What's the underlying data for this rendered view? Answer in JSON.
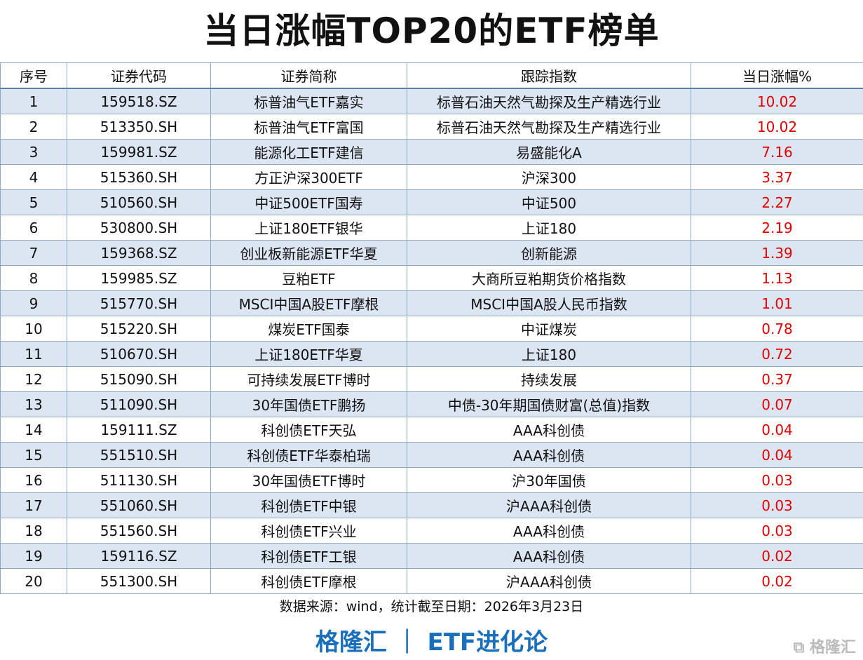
{
  "title": "当日涨幅TOP20的ETF榜单",
  "columns": [
    "序号",
    "证券代码",
    "证券简称",
    "跟踪指数",
    "当日涨幅%"
  ],
  "rows": [
    [
      "1",
      "159518.SZ",
      "标普油气ETF嘉实",
      "标普石油天然气勘探及生产精选行业",
      "10.02"
    ],
    [
      "2",
      "513350.SH",
      "标普油气ETF富国",
      "标普石油天然气勘探及生产精选行业",
      "10.02"
    ],
    [
      "3",
      "159981.SZ",
      "能源化工ETF建信",
      "易盛能化A",
      "7.16"
    ],
    [
      "4",
      "515360.SH",
      "方正沪深300ETF",
      "沪深300",
      "3.37"
    ],
    [
      "5",
      "510560.SH",
      "中证500ETF国寿",
      "中证500",
      "2.27"
    ],
    [
      "6",
      "530800.SH",
      "上证180ETF银华",
      "上证180",
      "2.19"
    ],
    [
      "7",
      "159368.SZ",
      "创业板新能源ETF华夏",
      "创新能源",
      "1.39"
    ],
    [
      "8",
      "159985.SZ",
      "豆粕ETF",
      "大商所豆粕期货价格指数",
      "1.13"
    ],
    [
      "9",
      "515770.SH",
      "MSCI中国A股ETF摩根",
      "MSCI中国A股人民币指数",
      "1.01"
    ],
    [
      "10",
      "515220.SH",
      "煤炭ETF国泰",
      "中证煤炭",
      "0.78"
    ],
    [
      "11",
      "510670.SH",
      "上证180ETF华夏",
      "上证180",
      "0.72"
    ],
    [
      "12",
      "515090.SH",
      "可持续发展ETF博时",
      "持续发展",
      "0.37"
    ],
    [
      "13",
      "511090.SH",
      "30年国债ETF鹏扬",
      "中债-30年期国债财富(总值)指数",
      "0.07"
    ],
    [
      "14",
      "159111.SZ",
      "科创债ETF天弘",
      "AAA科创债",
      "0.04"
    ],
    [
      "15",
      "551510.SH",
      "科创债ETF华泰柏瑞",
      "AAA科创债",
      "0.04"
    ],
    [
      "16",
      "511130.SH",
      "30年国债ETF博时",
      "沪30年国债",
      "0.03"
    ],
    [
      "17",
      "551060.SH",
      "科创债ETF中银",
      "沪AAA科创债",
      "0.03"
    ],
    [
      "18",
      "551560.SH",
      "科创债ETF兴业",
      "AAA科创债",
      "0.03"
    ],
    [
      "19",
      "159116.SZ",
      "科创债ETF工银",
      "AAA科创债",
      "0.02"
    ],
    [
      "20",
      "551300.SH",
      "科创债ETF摩根",
      "沪AAA科创债",
      "0.02"
    ]
  ],
  "source": "数据来源：wind，统计截至日期：2026年3月23日",
  "brand": "格隆汇 ｜ ETF进化论",
  "watermark": "格隆汇",
  "colors": {
    "positive": "#e00000",
    "row_stripe": "#dce6f2",
    "brand": "#1a6fba"
  }
}
